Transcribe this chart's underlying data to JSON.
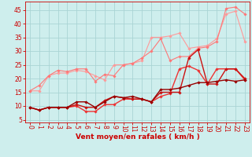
{
  "background_color": "#ceeeed",
  "grid_color": "#aad4d4",
  "x_values": [
    0,
    1,
    2,
    3,
    4,
    5,
    6,
    7,
    8,
    9,
    10,
    11,
    12,
    13,
    14,
    15,
    16,
    17,
    18,
    19,
    20,
    21,
    22,
    23
  ],
  "series": [
    {
      "color": "#ff9999",
      "linewidth": 0.8,
      "marker": "D",
      "markersize": 1.8,
      "y": [
        15.5,
        15.5,
        21.0,
        22.0,
        22.0,
        23.0,
        22.5,
        21.0,
        19.5,
        25.0,
        25.0,
        25.5,
        26.5,
        35.0,
        35.0,
        35.5,
        36.5,
        31.0,
        31.5,
        32.0,
        34.5,
        43.5,
        44.5,
        33.5
      ]
    },
    {
      "color": "#ff7777",
      "linewidth": 0.8,
      "marker": "D",
      "markersize": 1.8,
      "y": [
        15.5,
        17.5,
        21.0,
        23.0,
        22.5,
        23.5,
        23.5,
        19.0,
        21.5,
        21.0,
        25.0,
        25.5,
        27.5,
        30.0,
        34.5,
        26.5,
        28.0,
        28.0,
        31.0,
        31.5,
        33.5,
        45.5,
        46.0,
        43.5
      ]
    },
    {
      "color": "#ee3333",
      "linewidth": 1.0,
      "marker": "D",
      "markersize": 1.8,
      "y": [
        9.5,
        8.5,
        9.5,
        9.5,
        9.5,
        10.0,
        8.0,
        8.0,
        10.5,
        10.5,
        12.5,
        12.5,
        12.5,
        11.5,
        13.5,
        14.5,
        23.5,
        24.5,
        23.0,
        18.0,
        23.5,
        23.5,
        23.5,
        19.5
      ]
    },
    {
      "color": "#cc1111",
      "linewidth": 1.0,
      "marker": "D",
      "markersize": 1.8,
      "y": [
        9.5,
        8.5,
        9.5,
        9.5,
        9.5,
        10.5,
        9.5,
        9.5,
        12.0,
        13.5,
        13.0,
        12.5,
        12.5,
        11.5,
        15.0,
        15.0,
        15.0,
        27.5,
        30.5,
        18.0,
        18.0,
        23.5,
        23.5,
        20.0
      ]
    },
    {
      "color": "#990000",
      "linewidth": 1.0,
      "marker": "D",
      "markersize": 1.8,
      "y": [
        9.5,
        8.5,
        9.5,
        9.5,
        9.5,
        11.5,
        11.5,
        9.5,
        11.5,
        13.5,
        13.0,
        13.5,
        12.5,
        11.5,
        16.0,
        16.0,
        16.5,
        17.5,
        18.5,
        18.5,
        19.0,
        19.5,
        19.0,
        19.5
      ]
    }
  ],
  "xlabel": "Vent moyen/en rafales ( km/h )",
  "xlim": [
    -0.5,
    23.5
  ],
  "ylim": [
    4,
    48
  ],
  "yticks": [
    5,
    10,
    15,
    20,
    25,
    30,
    35,
    40,
    45
  ],
  "xticks": [
    0,
    1,
    2,
    3,
    4,
    5,
    6,
    7,
    8,
    9,
    10,
    11,
    12,
    13,
    14,
    15,
    16,
    17,
    18,
    19,
    20,
    21,
    22,
    23
  ],
  "tick_color": "#cc0000",
  "label_fontsize": 5.5,
  "xlabel_fontsize": 6.5
}
